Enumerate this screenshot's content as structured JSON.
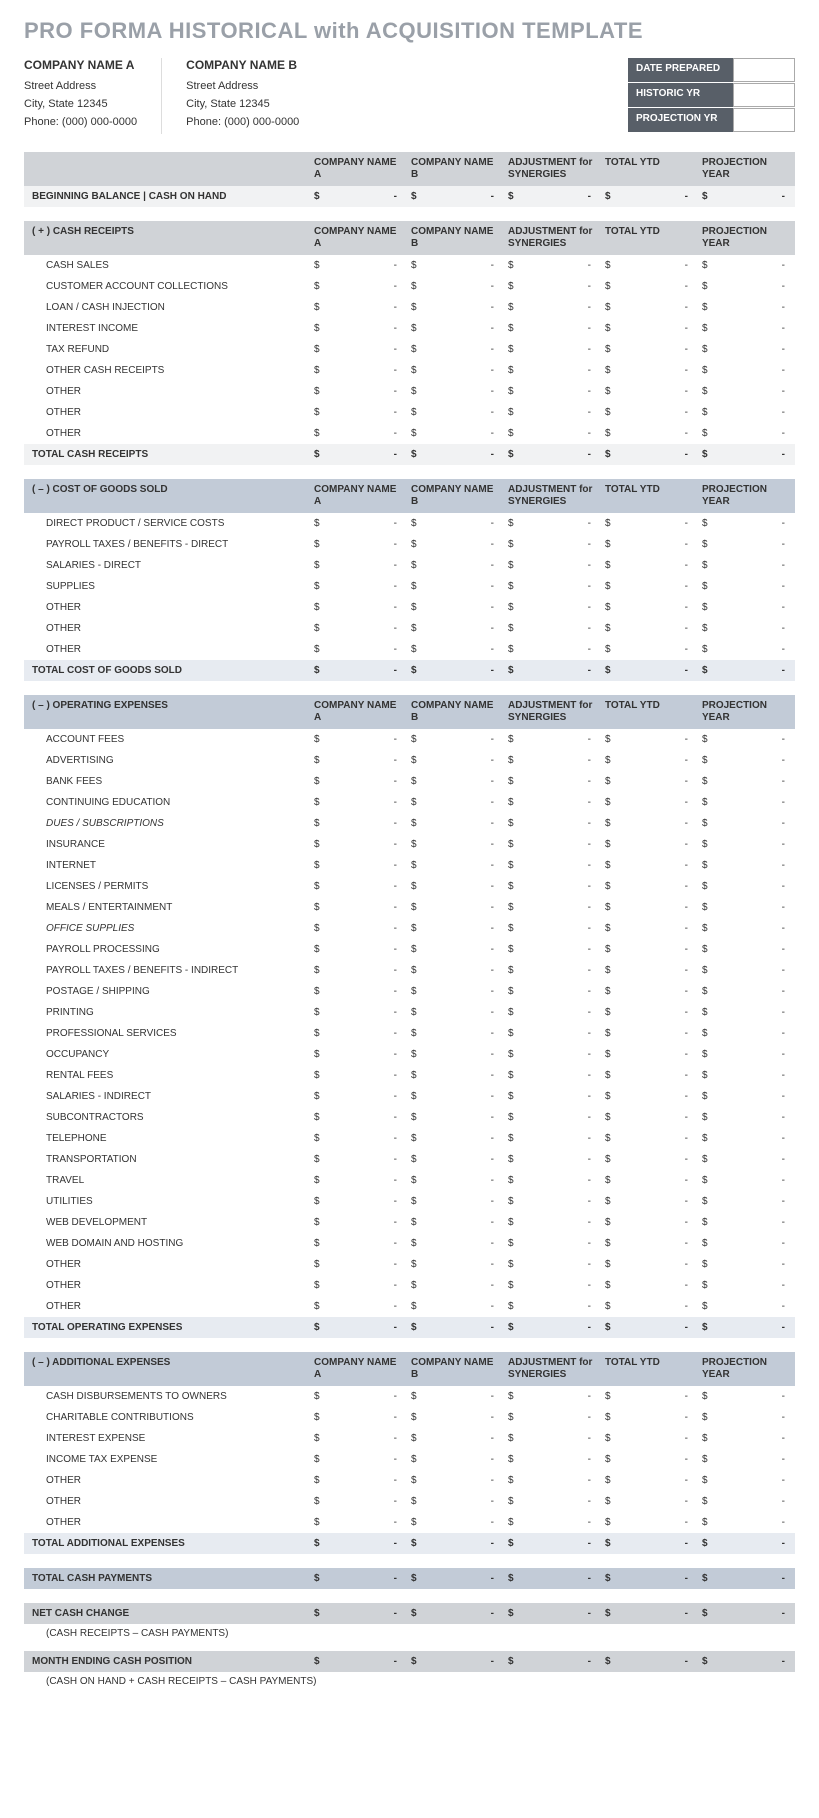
{
  "title": "PRO FORMA HISTORICAL with ACQUISITION TEMPLATE",
  "companyA": {
    "heading": "COMPANY NAME A",
    "address1": "Street Address",
    "address2": "City, State  12345",
    "phone": "Phone: (000) 000-0000"
  },
  "companyB": {
    "heading": "COMPANY NAME B",
    "address1": "Street Address",
    "address2": "City, State  12345",
    "phone": "Phone: (000) 000-0000"
  },
  "dateBox": {
    "rows": [
      {
        "label": "DATE PREPARED",
        "value": ""
      },
      {
        "label": "HISTORIC YR",
        "value": ""
      },
      {
        "label": "PROJECTION YR",
        "value": ""
      }
    ]
  },
  "columns": {
    "c1": "COMPANY NAME A",
    "c2": "COMPANY NAME B",
    "c3": "ADJUSTMENT for SYNERGIES",
    "c4": "TOTAL YTD",
    "c5": "PROJECTION YEAR"
  },
  "currencySymbol": "$",
  "dash": "-",
  "tables": [
    {
      "id": "beginning",
      "headerStyle": "hdr-gray",
      "sectionLabel": "",
      "rows": [
        {
          "label": "BEGINNING BALANCE  |  CASH ON HAND",
          "bold": true,
          "style": "row-light"
        }
      ]
    },
    {
      "id": "cash-receipts",
      "headerStyle": "hdr-gray",
      "sectionLabel": "( + )  CASH RECEIPTS",
      "rows": [
        {
          "label": "CASH SALES",
          "indent": true
        },
        {
          "label": "CUSTOMER ACCOUNT COLLECTIONS",
          "indent": true
        },
        {
          "label": "LOAN / CASH INJECTION",
          "indent": true
        },
        {
          "label": "INTEREST INCOME",
          "indent": true
        },
        {
          "label": "TAX REFUND",
          "indent": true
        },
        {
          "label": "OTHER CASH RECEIPTS",
          "indent": true
        },
        {
          "label": "OTHER",
          "indent": true
        },
        {
          "label": "OTHER",
          "indent": true
        },
        {
          "label": "OTHER",
          "indent": true
        },
        {
          "label": "TOTAL CASH RECEIPTS",
          "bold": true,
          "style": "row-light"
        }
      ]
    },
    {
      "id": "cogs",
      "headerStyle": "hdr-blue",
      "sectionLabel": "( – )  COST OF GOODS SOLD",
      "rows": [
        {
          "label": "DIRECT PRODUCT / SERVICE COSTS",
          "indent": true
        },
        {
          "label": "PAYROLL TAXES / BENEFITS - DIRECT",
          "indent": true
        },
        {
          "label": "SALARIES - DIRECT",
          "indent": true
        },
        {
          "label": "SUPPLIES",
          "indent": true
        },
        {
          "label": "OTHER",
          "indent": true
        },
        {
          "label": "OTHER",
          "indent": true
        },
        {
          "label": "OTHER",
          "indent": true
        },
        {
          "label": "TOTAL COST OF GOODS SOLD",
          "bold": true,
          "style": "row-blue-light"
        }
      ]
    },
    {
      "id": "opex",
      "headerStyle": "hdr-blue",
      "sectionLabel": "( – )  OPERATING EXPENSES",
      "rows": [
        {
          "label": "ACCOUNT FEES",
          "indent": true
        },
        {
          "label": "ADVERTISING",
          "indent": true
        },
        {
          "label": "BANK FEES",
          "indent": true
        },
        {
          "label": "CONTINUING EDUCATION",
          "indent": true
        },
        {
          "label": "DUES / SUBSCRIPTIONS",
          "indent": true,
          "italic": true
        },
        {
          "label": "INSURANCE",
          "indent": true
        },
        {
          "label": "INTERNET",
          "indent": true
        },
        {
          "label": "LICENSES / PERMITS",
          "indent": true
        },
        {
          "label": "MEALS / ENTERTAINMENT",
          "indent": true
        },
        {
          "label": "OFFICE SUPPLIES",
          "indent": true,
          "italic": true
        },
        {
          "label": "PAYROLL PROCESSING",
          "indent": true
        },
        {
          "label": "PAYROLL TAXES / BENEFITS - INDIRECT",
          "indent": true
        },
        {
          "label": "POSTAGE / SHIPPING",
          "indent": true
        },
        {
          "label": "PRINTING",
          "indent": true
        },
        {
          "label": "PROFESSIONAL SERVICES",
          "indent": true
        },
        {
          "label": "OCCUPANCY",
          "indent": true
        },
        {
          "label": "RENTAL FEES",
          "indent": true
        },
        {
          "label": "SALARIES - INDIRECT",
          "indent": true
        },
        {
          "label": "SUBCONTRACTORS",
          "indent": true
        },
        {
          "label": "TELEPHONE",
          "indent": true
        },
        {
          "label": "TRANSPORTATION",
          "indent": true
        },
        {
          "label": "TRAVEL",
          "indent": true
        },
        {
          "label": "UTILITIES",
          "indent": true
        },
        {
          "label": "WEB DEVELOPMENT",
          "indent": true
        },
        {
          "label": "WEB DOMAIN AND HOSTING",
          "indent": true
        },
        {
          "label": "OTHER",
          "indent": true
        },
        {
          "label": "OTHER",
          "indent": true
        },
        {
          "label": "OTHER",
          "indent": true
        },
        {
          "label": "TOTAL OPERATING EXPENSES",
          "bold": true,
          "style": "row-blue-light"
        }
      ]
    },
    {
      "id": "additional",
      "headerStyle": "hdr-blue",
      "sectionLabel": "( – )  ADDITIONAL EXPENSES",
      "rows": [
        {
          "label": "CASH DISBURSEMENTS TO OWNERS",
          "indent": true
        },
        {
          "label": "CHARITABLE CONTRIBUTIONS",
          "indent": true
        },
        {
          "label": "INTEREST EXPENSE",
          "indent": true
        },
        {
          "label": "INCOME TAX EXPENSE",
          "indent": true
        },
        {
          "label": "OTHER",
          "indent": true
        },
        {
          "label": "OTHER",
          "indent": true
        },
        {
          "label": "OTHER",
          "indent": true
        },
        {
          "label": "TOTAL ADDITIONAL EXPENSES",
          "bold": true,
          "style": "row-blue-light"
        }
      ]
    }
  ],
  "summary": [
    {
      "label": "TOTAL CASH PAYMENTS",
      "style": "row-blue-total",
      "note": ""
    },
    {
      "label": "NET CASH CHANGE",
      "style": "row-gray-total",
      "note": "(CASH RECEIPTS – CASH PAYMENTS)"
    },
    {
      "label": "MONTH ENDING CASH POSITION",
      "style": "row-gray-total",
      "note": "(CASH ON HAND + CASH RECEIPTS – CASH PAYMENTS)"
    }
  ],
  "colors": {
    "title": "#9aa0a8",
    "hdrGray": "#d0d3d7",
    "hdrBlue": "#c2cbd7",
    "rowLight": "#f1f2f3",
    "rowBlueLight": "#e7ebf1",
    "dateLabelBg": "#585f68"
  }
}
